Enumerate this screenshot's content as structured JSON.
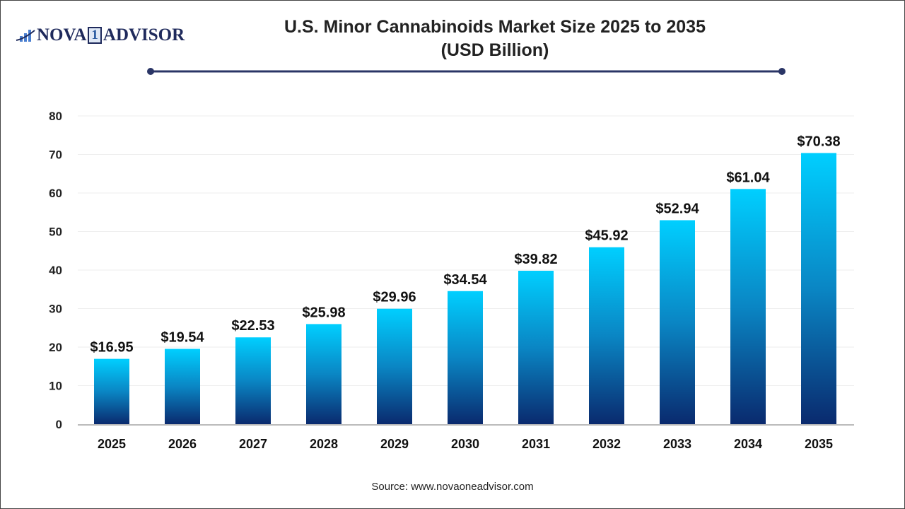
{
  "logo": {
    "text_left": "NOVA",
    "text_box": "1",
    "text_right": "ADVISOR"
  },
  "chart_data": {
    "type": "bar",
    "title": "U.S. Minor Cannabinoids Market Size 2025 to 2035",
    "subtitle": "(USD Billion)",
    "categories": [
      "2025",
      "2026",
      "2027",
      "2028",
      "2029",
      "2030",
      "2031",
      "2032",
      "2033",
      "2034",
      "2035"
    ],
    "values": [
      16.95,
      19.54,
      22.53,
      25.98,
      29.96,
      34.54,
      39.82,
      45.92,
      52.94,
      61.04,
      70.38
    ],
    "data_labels": [
      "$16.95",
      "$19.54",
      "$22.53",
      "$25.98",
      "$29.96",
      "$34.54",
      "$39.82",
      "$45.92",
      "$52.94",
      "$61.04",
      "$70.38"
    ],
    "ylim": [
      0,
      80
    ],
    "yticks": [
      0,
      10,
      20,
      30,
      40,
      50,
      60,
      70,
      80
    ],
    "grid": true,
    "colors": {
      "bar_top": "#00cfff",
      "bar_bottom": "#0a2a6e",
      "title_line": "#2a3566"
    }
  },
  "source": "Source: www.novaoneadvisor.com"
}
